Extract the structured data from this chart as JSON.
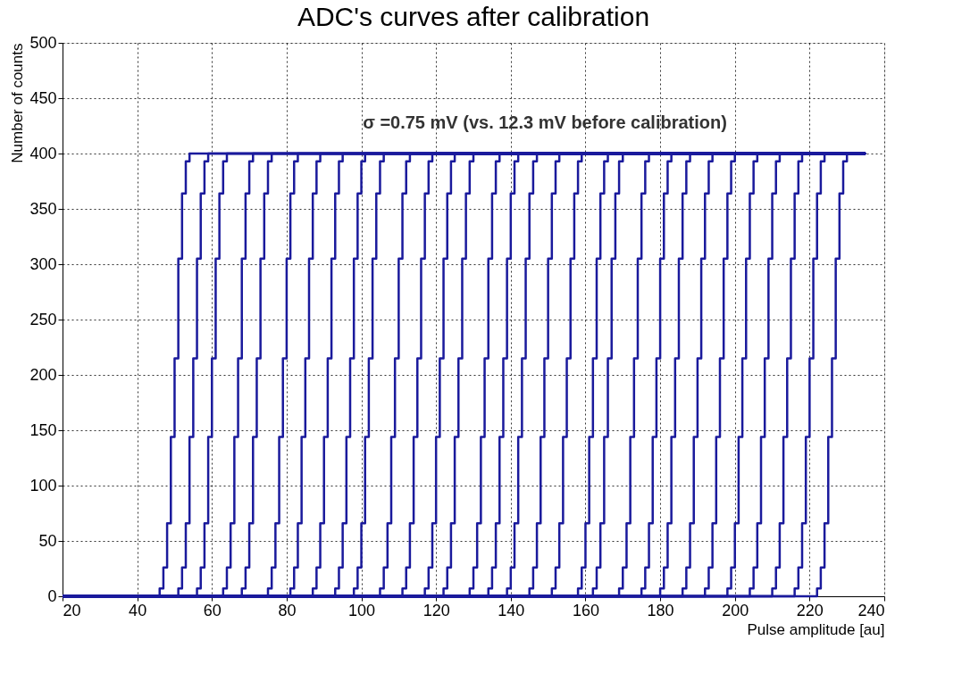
{
  "chart_data": {
    "type": "step",
    "title": "ADC's curves after calibration",
    "xlabel": "Pulse amplitude [au]",
    "ylabel": "Number of counts",
    "annotations": [
      "σ =0.75 mV (vs. 12.3 mV before calibration)"
    ],
    "xlim": [
      20,
      240
    ],
    "xticks": [
      20,
      40,
      60,
      80,
      100,
      120,
      140,
      160,
      180,
      200,
      220,
      240
    ],
    "ylim": [
      0,
      500
    ],
    "yticks": [
      0,
      50,
      100,
      150,
      200,
      250,
      300,
      350,
      400,
      450,
      500
    ],
    "grid": true,
    "legend": false,
    "line_style": "solid",
    "series": [
      {
        "color": "#1a1a9c",
        "x": [
          20,
          46,
          47,
          48,
          49,
          50,
          51,
          52,
          53,
          54,
          235
        ],
        "values": [
          0,
          7,
          26,
          66,
          144,
          215,
          305,
          364,
          393,
          400,
          400
        ]
      },
      {
        "color": "#1a1a9c",
        "x": [
          20,
          51,
          52,
          53,
          54,
          55,
          56,
          57,
          58,
          59,
          235
        ],
        "values": [
          0,
          7,
          26,
          66,
          144,
          215,
          305,
          364,
          393,
          400,
          400
        ]
      },
      {
        "color": "#1a1a9c",
        "x": [
          20,
          56,
          57,
          58,
          59,
          60,
          61,
          62,
          63,
          64,
          235
        ],
        "values": [
          0,
          7,
          26,
          66,
          144,
          215,
          305,
          364,
          393,
          400,
          400
        ]
      },
      {
        "color": "#1a1a9c",
        "x": [
          20,
          63,
          64,
          65,
          66,
          67,
          68,
          69,
          70,
          71,
          235
        ],
        "values": [
          0,
          7,
          26,
          66,
          144,
          215,
          305,
          364,
          393,
          400,
          400
        ]
      },
      {
        "color": "#1a1a9c",
        "x": [
          20,
          68,
          69,
          70,
          71,
          72,
          73,
          74,
          75,
          76,
          235
        ],
        "values": [
          0,
          7,
          26,
          66,
          144,
          215,
          305,
          364,
          393,
          400,
          400
        ]
      },
      {
        "color": "#1a1a9c",
        "x": [
          20,
          75,
          76,
          77,
          78,
          79,
          80,
          81,
          82,
          83,
          235
        ],
        "values": [
          0,
          7,
          26,
          66,
          144,
          215,
          305,
          364,
          393,
          400,
          400
        ]
      },
      {
        "color": "#1a1a9c",
        "x": [
          20,
          81,
          82,
          83,
          84,
          85,
          86,
          87,
          88,
          89,
          235
        ],
        "values": [
          0,
          7,
          26,
          66,
          144,
          215,
          305,
          364,
          393,
          400,
          400
        ]
      },
      {
        "color": "#1a1a9c",
        "x": [
          20,
          87,
          88,
          89,
          90,
          91,
          92,
          93,
          94,
          95,
          235
        ],
        "values": [
          0,
          7,
          26,
          66,
          144,
          215,
          305,
          364,
          393,
          400,
          400
        ]
      },
      {
        "color": "#1a1a9c",
        "x": [
          20,
          93,
          94,
          95,
          96,
          97,
          98,
          99,
          100,
          101,
          235
        ],
        "values": [
          0,
          7,
          26,
          66,
          144,
          215,
          305,
          364,
          393,
          400,
          400
        ]
      },
      {
        "color": "#1a1a9c",
        "x": [
          20,
          98,
          99,
          100,
          101,
          102,
          103,
          104,
          105,
          106,
          235
        ],
        "values": [
          0,
          7,
          26,
          66,
          144,
          215,
          305,
          364,
          393,
          400,
          400
        ]
      },
      {
        "color": "#1a1a9c",
        "x": [
          20,
          105,
          106,
          107,
          108,
          109,
          110,
          111,
          112,
          113,
          235
        ],
        "values": [
          0,
          7,
          26,
          66,
          144,
          215,
          305,
          364,
          393,
          400,
          400
        ]
      },
      {
        "color": "#1a1a9c",
        "x": [
          20,
          111,
          112,
          113,
          114,
          115,
          116,
          117,
          118,
          119,
          235
        ],
        "values": [
          0,
          7,
          26,
          66,
          144,
          215,
          305,
          364,
          393,
          400,
          400
        ]
      },
      {
        "color": "#1a1a9c",
        "x": [
          20,
          117,
          118,
          119,
          120,
          121,
          122,
          123,
          124,
          125,
          235
        ],
        "values": [
          0,
          7,
          26,
          66,
          144,
          215,
          305,
          364,
          393,
          400,
          400
        ]
      },
      {
        "color": "#1a1a9c",
        "x": [
          20,
          122,
          123,
          124,
          125,
          126,
          127,
          128,
          129,
          130,
          235
        ],
        "values": [
          0,
          7,
          26,
          66,
          144,
          215,
          305,
          364,
          393,
          400,
          400
        ]
      },
      {
        "color": "#1a1a9c",
        "x": [
          20,
          129,
          130,
          131,
          132,
          133,
          134,
          135,
          136,
          137,
          235
        ],
        "values": [
          0,
          7,
          26,
          66,
          144,
          215,
          305,
          364,
          393,
          400,
          400
        ]
      },
      {
        "color": "#1a1a9c",
        "x": [
          20,
          134,
          135,
          136,
          137,
          138,
          139,
          140,
          141,
          142,
          235
        ],
        "values": [
          0,
          7,
          26,
          66,
          144,
          215,
          305,
          364,
          393,
          400,
          400
        ]
      },
      {
        "color": "#1a1a9c",
        "x": [
          20,
          139,
          140,
          141,
          142,
          143,
          144,
          145,
          146,
          147,
          235
        ],
        "values": [
          0,
          7,
          26,
          66,
          144,
          215,
          305,
          364,
          393,
          400,
          400
        ]
      },
      {
        "color": "#1a1a9c",
        "x": [
          20,
          145,
          146,
          147,
          148,
          149,
          150,
          151,
          152,
          153,
          235
        ],
        "values": [
          0,
          7,
          26,
          66,
          144,
          215,
          305,
          364,
          393,
          400,
          400
        ]
      },
      {
        "color": "#1a1a9c",
        "x": [
          20,
          151,
          152,
          153,
          154,
          155,
          156,
          157,
          158,
          159,
          235
        ],
        "values": [
          0,
          7,
          26,
          66,
          144,
          215,
          305,
          364,
          393,
          400,
          400
        ]
      },
      {
        "color": "#1a1a9c",
        "x": [
          20,
          158,
          159,
          160,
          161,
          162,
          163,
          164,
          165,
          166,
          235
        ],
        "values": [
          0,
          7,
          26,
          66,
          144,
          215,
          305,
          364,
          393,
          400,
          400
        ]
      },
      {
        "color": "#1a1a9c",
        "x": [
          20,
          162,
          163,
          164,
          165,
          166,
          167,
          168,
          169,
          170,
          235
        ],
        "values": [
          0,
          7,
          26,
          66,
          144,
          215,
          305,
          364,
          393,
          400,
          400
        ]
      },
      {
        "color": "#1a1a9c",
        "x": [
          20,
          169,
          170,
          171,
          172,
          173,
          174,
          175,
          176,
          177,
          235
        ],
        "values": [
          0,
          7,
          26,
          66,
          144,
          215,
          305,
          364,
          393,
          400,
          400
        ]
      },
      {
        "color": "#1a1a9c",
        "x": [
          20,
          175,
          176,
          177,
          178,
          179,
          180,
          181,
          182,
          183,
          235
        ],
        "values": [
          0,
          7,
          26,
          66,
          144,
          215,
          305,
          364,
          393,
          400,
          400
        ]
      },
      {
        "color": "#1a1a9c",
        "x": [
          20,
          180,
          181,
          182,
          183,
          184,
          185,
          186,
          187,
          188,
          235
        ],
        "values": [
          0,
          7,
          26,
          66,
          144,
          215,
          305,
          364,
          393,
          400,
          400
        ]
      },
      {
        "color": "#1a1a9c",
        "x": [
          20,
          186,
          187,
          188,
          189,
          190,
          191,
          192,
          193,
          194,
          235
        ],
        "values": [
          0,
          7,
          26,
          66,
          144,
          215,
          305,
          364,
          393,
          400,
          400
        ]
      },
      {
        "color": "#1a1a9c",
        "x": [
          20,
          192,
          193,
          194,
          195,
          196,
          197,
          198,
          199,
          200,
          235
        ],
        "values": [
          0,
          7,
          26,
          66,
          144,
          215,
          305,
          364,
          393,
          400,
          400
        ]
      },
      {
        "color": "#1a1a9c",
        "x": [
          20,
          198,
          199,
          200,
          201,
          202,
          203,
          204,
          205,
          206,
          235
        ],
        "values": [
          0,
          7,
          26,
          66,
          144,
          215,
          305,
          364,
          393,
          400,
          400
        ]
      },
      {
        "color": "#1a1a9c",
        "x": [
          20,
          204,
          205,
          206,
          207,
          208,
          209,
          210,
          211,
          212,
          235
        ],
        "values": [
          0,
          7,
          26,
          66,
          144,
          215,
          305,
          364,
          393,
          400,
          400
        ]
      },
      {
        "color": "#1a1a9c",
        "x": [
          20,
          210,
          211,
          212,
          213,
          214,
          215,
          216,
          217,
          218,
          235
        ],
        "values": [
          0,
          7,
          26,
          66,
          144,
          215,
          305,
          364,
          393,
          400,
          400
        ]
      },
      {
        "color": "#1a1a9c",
        "x": [
          20,
          216,
          217,
          218,
          219,
          220,
          221,
          222,
          223,
          224,
          235
        ],
        "values": [
          0,
          7,
          26,
          66,
          144,
          215,
          305,
          364,
          393,
          400,
          400
        ]
      },
      {
        "color": "#1a1a9c",
        "x": [
          20,
          222,
          223,
          224,
          225,
          226,
          227,
          228,
          229,
          230,
          235
        ],
        "values": [
          0,
          7,
          26,
          66,
          144,
          215,
          305,
          364,
          393,
          400,
          400
        ]
      }
    ]
  }
}
